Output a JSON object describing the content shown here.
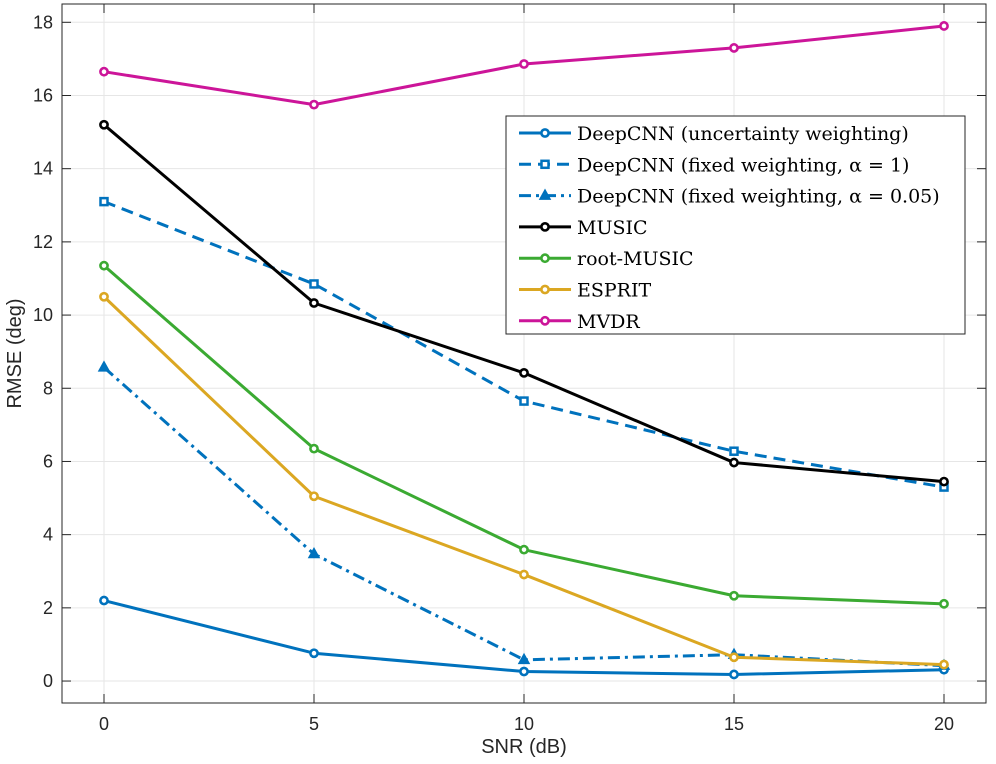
{
  "chart_data": {
    "type": "line",
    "title": "",
    "xlabel": "SNR (dB)",
    "ylabel": "RMSE (deg)",
    "x": [
      0,
      5,
      10,
      15,
      20
    ],
    "xlim": [
      -1,
      21
    ],
    "ylim": [
      -0.6,
      18.5
    ],
    "xticks": [
      0,
      5,
      10,
      15,
      20
    ],
    "yticks": [
      0,
      2,
      4,
      6,
      8,
      10,
      12,
      14,
      16,
      18
    ],
    "grid": true,
    "legend_location": "upper-right-inside",
    "series": [
      {
        "name": "DeepCNN (uncertainty weighting)",
        "values": [
          2.2,
          0.76,
          0.26,
          0.18,
          0.31
        ],
        "color": "#0072BD",
        "dash": "solid",
        "marker": "circle"
      },
      {
        "name": "DeepCNN (fixed weighting, α = 1)",
        "values": [
          13.1,
          10.85,
          7.65,
          6.28,
          5.3
        ],
        "color": "#0072BD",
        "dash": "dashed",
        "marker": "square"
      },
      {
        "name": "DeepCNN (fixed weighting, α = 0.05)",
        "values": [
          8.57,
          3.47,
          0.58,
          0.72,
          0.42
        ],
        "color": "#0072BD",
        "dash": "dashdot",
        "marker": "triangle"
      },
      {
        "name": "MUSIC",
        "values": [
          15.2,
          10.33,
          8.42,
          5.97,
          5.45
        ],
        "color": "#000000",
        "dash": "solid",
        "marker": "circle"
      },
      {
        "name": "root-MUSIC",
        "values": [
          11.35,
          6.35,
          3.59,
          2.33,
          2.11
        ],
        "color": "#3BAA32",
        "dash": "solid",
        "marker": "circle"
      },
      {
        "name": "ESPRIT",
        "values": [
          10.5,
          5.05,
          2.91,
          0.65,
          0.45
        ],
        "color": "#DBA722",
        "dash": "solid",
        "marker": "circle"
      },
      {
        "name": "MVDR",
        "values": [
          16.65,
          15.75,
          16.86,
          17.3,
          17.9
        ],
        "color": "#CC1599",
        "dash": "solid",
        "marker": "circle"
      }
    ]
  }
}
